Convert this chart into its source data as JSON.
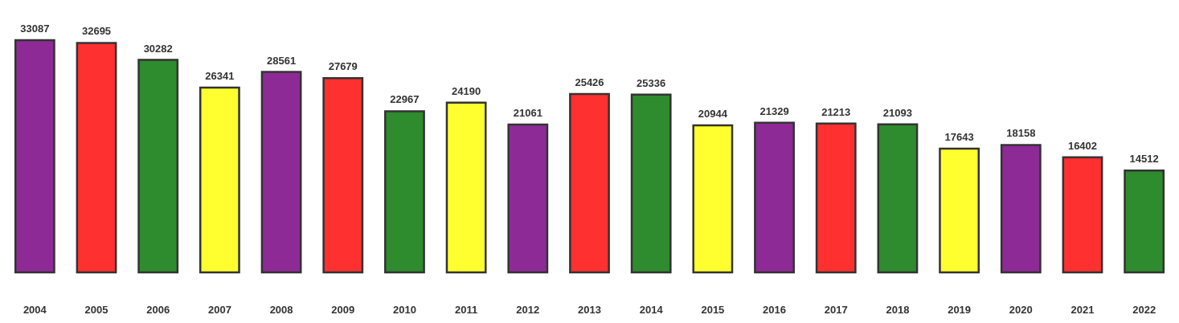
{
  "chart_data": {
    "type": "bar",
    "categories": [
      "2004",
      "2005",
      "2006",
      "2007",
      "2008",
      "2009",
      "2010",
      "2011",
      "2012",
      "2013",
      "2014",
      "2015",
      "2016",
      "2017",
      "2018",
      "2019",
      "2020",
      "2021",
      "2022"
    ],
    "values": [
      33087,
      32695,
      30282,
      26341,
      28561,
      27679,
      22967,
      24190,
      21061,
      25426,
      25336,
      20944,
      21329,
      21213,
      21093,
      17643,
      18158,
      16402,
      14512
    ],
    "colors": [
      "#8e2a96",
      "#ff3030",
      "#2e8b2e",
      "#ffff30",
      "#8e2a96",
      "#ff3030",
      "#2e8b2e",
      "#ffff30",
      "#8e2a96",
      "#ff3030",
      "#2e8b2e",
      "#ffff30",
      "#8e2a96",
      "#ff3030",
      "#2e8b2e",
      "#ffff30",
      "#8e2a96",
      "#ff3030",
      "#2e8b2e"
    ],
    "data_labels": true
  }
}
